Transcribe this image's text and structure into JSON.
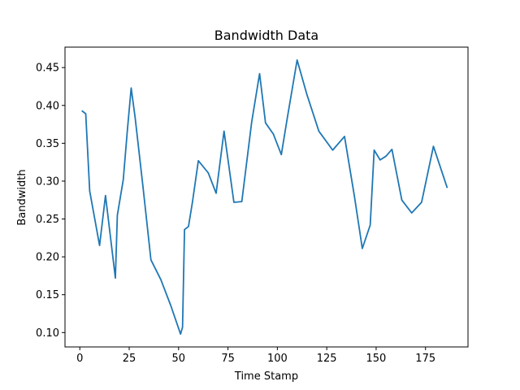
{
  "chart_data": {
    "type": "line",
    "title": "Bandwidth Data",
    "xlabel": "Time Stamp",
    "ylabel": "Bandwidth",
    "xlim": [
      -7.5,
      196.5
    ],
    "ylim": [
      0.081,
      0.477
    ],
    "xticks": [
      0,
      25,
      50,
      75,
      100,
      125,
      150,
      175
    ],
    "yticks": [
      0.1,
      0.15,
      0.2,
      0.25,
      0.3,
      0.35,
      0.4,
      0.45
    ],
    "ytick_labels": [
      "0.10",
      "0.15",
      "0.20",
      "0.25",
      "0.30",
      "0.35",
      "0.40",
      "0.45"
    ],
    "grid": false,
    "line_color": "#1f77b4",
    "series": [
      {
        "x": [
          1,
          3,
          5,
          10,
          13,
          18,
          19,
          22,
          24,
          26,
          28,
          32,
          36,
          41,
          46,
          51,
          52,
          53,
          55,
          57,
          60,
          65,
          69,
          73,
          78,
          82,
          87,
          91,
          94,
          98,
          102,
          105,
          110,
          115,
          121,
          128,
          134,
          139,
          143,
          147,
          149,
          152,
          155,
          158,
          163,
          168,
          173,
          179,
          186
        ],
        "y": [
          0.393,
          0.389,
          0.287,
          0.215,
          0.281,
          0.172,
          0.255,
          0.302,
          0.365,
          0.423,
          0.384,
          0.292,
          0.196,
          0.17,
          0.136,
          0.098,
          0.107,
          0.236,
          0.24,
          0.272,
          0.327,
          0.311,
          0.284,
          0.366,
          0.272,
          0.273,
          0.378,
          0.442,
          0.377,
          0.362,
          0.335,
          0.383,
          0.46,
          0.414,
          0.366,
          0.341,
          0.359,
          0.28,
          0.211,
          0.242,
          0.341,
          0.328,
          0.333,
          0.342,
          0.275,
          0.258,
          0.272,
          0.346,
          0.291
        ]
      }
    ]
  }
}
